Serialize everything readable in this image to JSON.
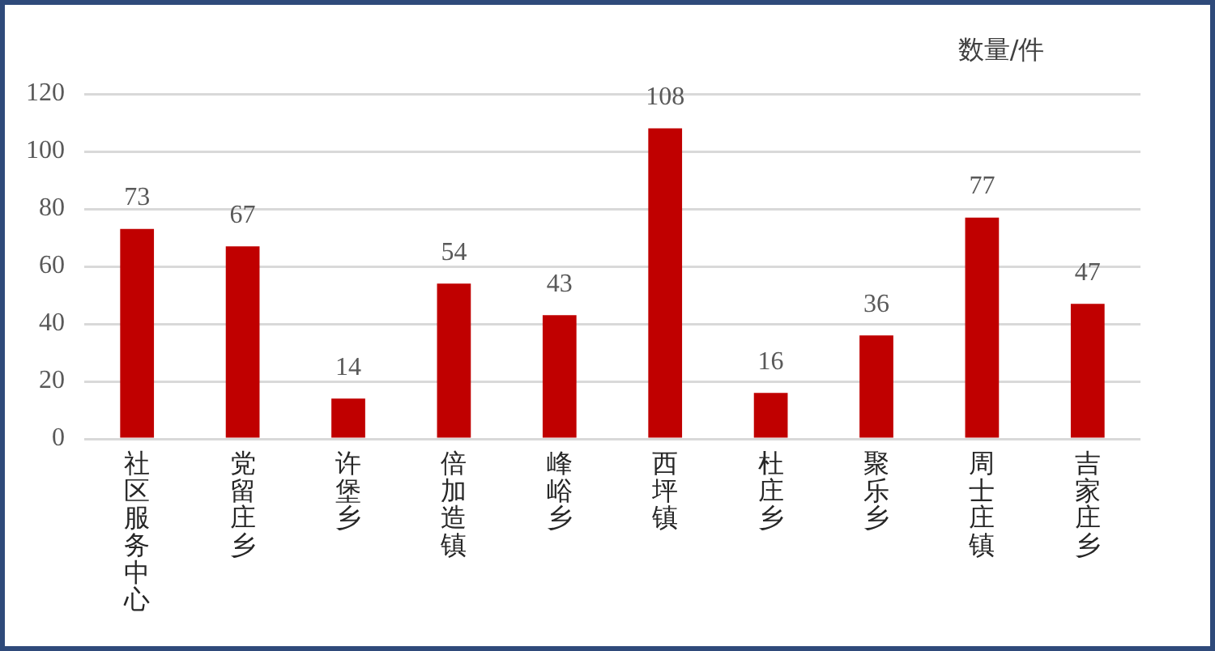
{
  "chart_data": {
    "type": "bar",
    "ylabel": "数量/件",
    "categories": [
      "社区服务中心",
      "党留庄乡",
      "许堡乡",
      "倍加造镇",
      "峰峪乡",
      "西坪镇",
      "杜庄乡",
      "聚乐乡",
      "周士庄镇",
      "吉家庄乡"
    ],
    "values": [
      73,
      67,
      14,
      54,
      43,
      108,
      16,
      36,
      77,
      47
    ],
    "color": "#c00000",
    "ylim": [
      0,
      120
    ],
    "yticks": [
      0,
      20,
      40,
      60,
      80,
      100,
      120
    ],
    "grid": "y",
    "data_labels": true
  }
}
